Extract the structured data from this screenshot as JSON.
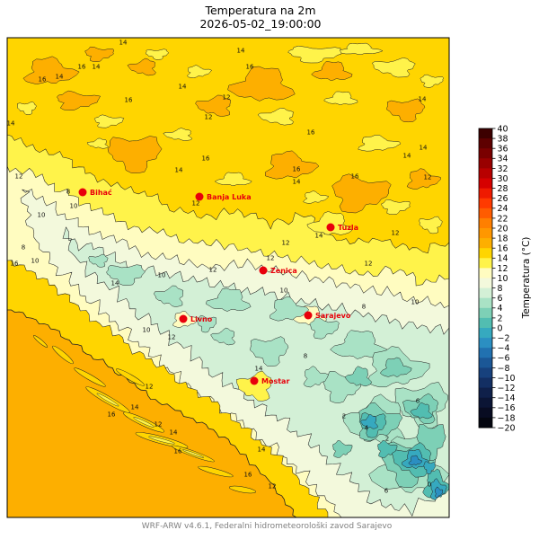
{
  "title": "Temperatura na 2m",
  "subtitle": "2026-05-02_19:00:00",
  "footer": "WRF-ARW v4.6.1, Federalni hidrometeorološki zavod Sarajevo",
  "colorbar": {
    "label": "Temperatura (°C)",
    "ticks": [
      "40",
      "38",
      "36",
      "34",
      "32",
      "30",
      "28",
      "26",
      "24",
      "22",
      "20",
      "18",
      "16",
      "14",
      "12",
      "10",
      "8",
      "6",
      "4",
      "2",
      "0",
      "−2",
      "−4",
      "−6",
      "−8",
      "−10",
      "−12",
      "−14",
      "−16",
      "−18",
      "−20"
    ],
    "colors": [
      "#3d0000",
      "#5e0000",
      "#7a0000",
      "#990000",
      "#b80000",
      "#d60000",
      "#ef1a00",
      "#ff3a00",
      "#ff5c00",
      "#ff7f00",
      "#ff9700",
      "#fdaf00",
      "#ffd500",
      "#fff34a",
      "#fffcc0",
      "#f3f9dc",
      "#d3f0d6",
      "#a9e2c5",
      "#7dd0b6",
      "#52bdb1",
      "#36a9bf",
      "#2b8fc2",
      "#2171b0",
      "#1b5796",
      "#17417d",
      "#132f63",
      "#0f204a",
      "#0b1535",
      "#080c22",
      "#040610"
    ]
  },
  "cities": [
    {
      "name": "Bihać"
    },
    {
      "name": "Banja Luka"
    },
    {
      "name": "Tuzla"
    },
    {
      "name": "Zenica"
    },
    {
      "name": "Livno"
    },
    {
      "name": "Sarajevo"
    },
    {
      "name": "Mostar"
    }
  ],
  "contour_labels": [
    "14",
    "16",
    "14",
    "14",
    "16",
    "16",
    "14",
    "12",
    "16",
    "14",
    "12",
    "16",
    "14",
    "14",
    "12",
    "8",
    "10",
    "10",
    "8",
    "10",
    "16",
    "14",
    "12",
    "12",
    "14",
    "12",
    "10",
    "12",
    "12",
    "14",
    "12",
    "14",
    "16",
    "16",
    "12",
    "14",
    "16",
    "14",
    "12",
    "2",
    "2",
    "6",
    "0",
    "6",
    "4",
    "8",
    "8",
    "12",
    "14",
    "14",
    "12",
    "12",
    "14",
    "16",
    "14",
    "16",
    "10",
    "10",
    "10",
    "16"
  ],
  "colors": {
    "city_marker": "#e8000b",
    "contour_line": "#222222",
    "footer_text": "#808080"
  }
}
